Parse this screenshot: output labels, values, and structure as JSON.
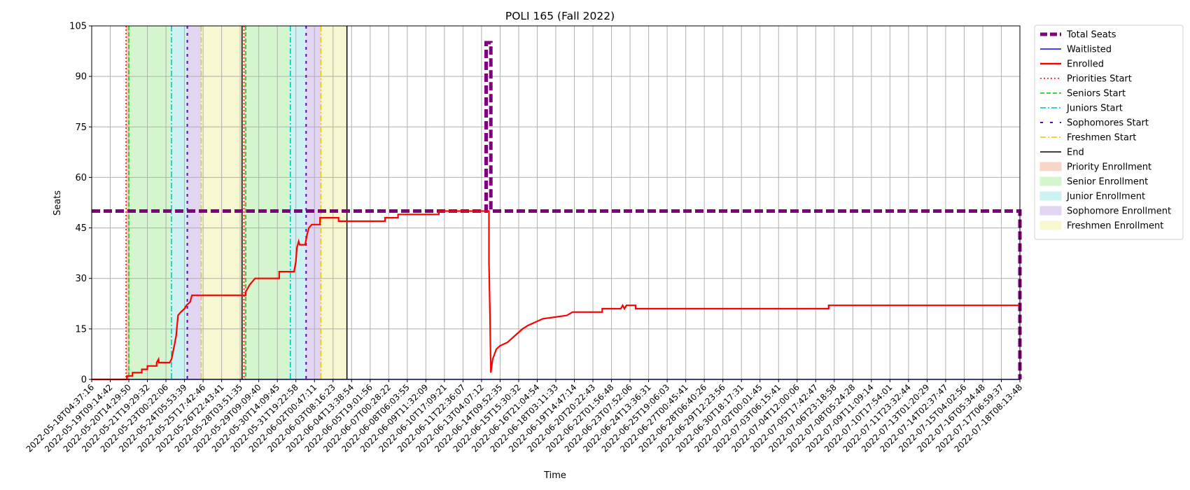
{
  "chart_data": {
    "type": "line",
    "title": "POLI 165 (Fall 2022)",
    "xlabel": "Time",
    "ylabel": "Seats",
    "ylim": [
      0,
      105
    ],
    "yticks": [
      0,
      15,
      30,
      45,
      60,
      75,
      90,
      105
    ],
    "grid": true,
    "legend_position": "outside right",
    "x_tick_labels": [
      "2022-05-18T04:37:16",
      "2022-05-19T09:14:42",
      "2022-05-20T14:29:50",
      "2022-05-21T19:29:32",
      "2022-05-23T00:22:06",
      "2022-05-24T05:53:39",
      "2022-05-25T17:42:46",
      "2022-05-26T22:43:41",
      "2022-05-28T03:51:35",
      "2022-05-29T09:09:40",
      "2022-05-30T14:09:45",
      "2022-05-31T19:22:58",
      "2022-06-02T00:47:11",
      "2022-06-03T08:16:23",
      "2022-06-04T13:38:54",
      "2022-06-05T19:01:56",
      "2022-06-07T00:28:22",
      "2022-06-08T06:03:55",
      "2022-06-09T11:32:09",
      "2022-06-10T17:09:21",
      "2022-06-11T22:36:07",
      "2022-06-13T04:07:12",
      "2022-06-14T09:52:35",
      "2022-06-15T15:30:32",
      "2022-06-16T21:04:54",
      "2022-06-18T03:11:33",
      "2022-06-19T14:47:14",
      "2022-06-20T20:22:43",
      "2022-06-22T01:56:48",
      "2022-06-23T07:52:06",
      "2022-06-24T13:36:31",
      "2022-06-25T19:06:03",
      "2022-06-27T00:45:41",
      "2022-06-28T06:40:26",
      "2022-06-29T12:23:56",
      "2022-06-30T18:17:31",
      "2022-07-02T00:01:45",
      "2022-07-03T06:15:41",
      "2022-07-04T12:00:06",
      "2022-07-05T17:42:47",
      "2022-07-06T23:18:58",
      "2022-07-08T05:24:28",
      "2022-07-09T11:09:14",
      "2022-07-10T17:54:01",
      "2022-07-11T23:32:44",
      "2022-07-13T01:20:29",
      "2022-07-14T02:37:47",
      "2022-07-15T04:02:56",
      "2022-07-16T05:34:48",
      "2022-07-17T06:59:37",
      "2022-07-18T08:13:48"
    ],
    "legend": [
      {
        "key": "total",
        "label": "Total Seats",
        "color": "#800080",
        "style": "thick-dash"
      },
      {
        "key": "wait",
        "label": "Waitlisted",
        "color": "#0000ff",
        "style": "line"
      },
      {
        "key": "enrolled",
        "label": "Enrolled",
        "color": "#ff0000",
        "style": "thick-line"
      },
      {
        "key": "prio",
        "label": "Priorities Start",
        "color": "#ff0000",
        "style": "dotted"
      },
      {
        "key": "senior",
        "label": "Seniors Start",
        "color": "#00cc00",
        "style": "dashed"
      },
      {
        "key": "junior",
        "label": "Juniors Start",
        "color": "#00bfbf",
        "style": "dashdot"
      },
      {
        "key": "soph",
        "label": "Sophomores Start",
        "color": "#6600cc",
        "style": "loose-dash"
      },
      {
        "key": "fresh",
        "label": "Freshmen Start",
        "color": "#e6c800",
        "style": "dashdot"
      },
      {
        "key": "end",
        "label": "End",
        "color": "#000000",
        "style": "line"
      },
      {
        "key": "prio_area",
        "label": "Priority Enrollment",
        "color": "#f7d5c8",
        "style": "patch"
      },
      {
        "key": "senior_area",
        "label": "Senior Enrollment",
        "color": "#d5f5cf",
        "style": "patch"
      },
      {
        "key": "junior_area",
        "label": "Junior Enrollment",
        "color": "#cdf2f2",
        "style": "patch"
      },
      {
        "key": "soph_area",
        "label": "Sophomore Enrollment",
        "color": "#e2d5f2",
        "style": "patch"
      },
      {
        "key": "fresh_area",
        "label": "Freshmen Enrollment",
        "color": "#f7f7d2",
        "style": "patch"
      }
    ],
    "phases": [
      {
        "priority": 1.85,
        "senior": 2.0,
        "junior": 4.3,
        "sophomore": 5.15,
        "freshmen": 5.9,
        "end": 8.1
      },
      {
        "priority": 8.2,
        "senior": 8.3,
        "junior": 10.7,
        "sophomore": 11.55,
        "freshmen": 12.35,
        "end": 13.75
      }
    ],
    "total_seats": [
      [
        0,
        50
      ],
      [
        21.25,
        50
      ],
      [
        21.25,
        100
      ],
      [
        21.5,
        100
      ],
      [
        21.5,
        50
      ],
      [
        50.0,
        50
      ],
      [
        50.0,
        0
      ]
    ],
    "waitlisted": [
      [
        0,
        0
      ],
      [
        50.0,
        0
      ]
    ],
    "enrolled": [
      [
        0,
        0
      ],
      [
        1.9,
        0
      ],
      [
        1.9,
        1
      ],
      [
        2.2,
        1
      ],
      [
        2.2,
        2
      ],
      [
        2.7,
        2
      ],
      [
        2.7,
        3
      ],
      [
        3.0,
        3
      ],
      [
        3.0,
        4
      ],
      [
        3.5,
        4
      ],
      [
        3.5,
        5
      ],
      [
        3.6,
        6
      ],
      [
        3.62,
        5
      ],
      [
        4.2,
        5
      ],
      [
        4.3,
        6
      ],
      [
        4.45,
        10
      ],
      [
        4.55,
        13
      ],
      [
        4.6,
        16
      ],
      [
        4.65,
        19
      ],
      [
        4.8,
        20
      ],
      [
        5.0,
        21
      ],
      [
        5.1,
        22
      ],
      [
        5.3,
        23
      ],
      [
        5.4,
        25
      ],
      [
        8.3,
        25
      ],
      [
        8.3,
        26
      ],
      [
        8.5,
        28
      ],
      [
        8.8,
        30
      ],
      [
        10.1,
        30
      ],
      [
        10.1,
        32
      ],
      [
        10.9,
        32
      ],
      [
        11.0,
        35
      ],
      [
        11.05,
        39
      ],
      [
        11.15,
        41
      ],
      [
        11.2,
        40
      ],
      [
        11.5,
        40
      ],
      [
        11.6,
        43
      ],
      [
        11.7,
        45
      ],
      [
        11.85,
        46
      ],
      [
        12.3,
        46
      ],
      [
        12.3,
        48
      ],
      [
        13.3,
        48
      ],
      [
        13.3,
        47
      ],
      [
        15.8,
        47
      ],
      [
        15.8,
        48
      ],
      [
        16.5,
        48
      ],
      [
        16.5,
        49
      ],
      [
        18.7,
        49
      ],
      [
        18.7,
        50
      ],
      [
        21.4,
        50
      ],
      [
        21.4,
        35
      ],
      [
        21.45,
        20
      ],
      [
        21.5,
        2
      ],
      [
        21.6,
        6
      ],
      [
        21.8,
        9
      ],
      [
        22.0,
        10
      ],
      [
        22.4,
        11
      ],
      [
        22.8,
        13
      ],
      [
        23.2,
        15
      ],
      [
        23.5,
        16
      ],
      [
        24.3,
        18
      ],
      [
        25.6,
        19
      ],
      [
        25.9,
        20
      ],
      [
        27.5,
        20
      ],
      [
        27.5,
        21
      ],
      [
        28.5,
        21
      ],
      [
        28.6,
        22
      ],
      [
        28.7,
        21
      ],
      [
        28.8,
        22
      ],
      [
        29.3,
        22
      ],
      [
        29.3,
        21
      ],
      [
        39.7,
        21
      ],
      [
        39.7,
        22
      ],
      [
        50.0,
        22
      ]
    ]
  }
}
